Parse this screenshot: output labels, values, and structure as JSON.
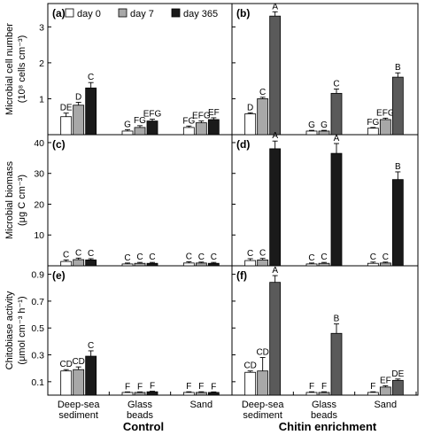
{
  "colors": {
    "day 0": "#ffffff",
    "day 7": "#a8a8a8",
    "day 365": "#1a1a1a",
    "panel_b_day365": "#5a5a5a",
    "panel_f_day365": "#5a5a5a",
    "axis": "#000000"
  },
  "legend": [
    "day 0",
    "day 7",
    "day 365"
  ],
  "x_groups": [
    [
      "Deep-sea",
      "sediment"
    ],
    [
      "Glass",
      "beads"
    ],
    [
      "Sand"
    ]
  ],
  "column_titles": [
    "Control",
    "Chitin enrichment"
  ],
  "row_ylabels": [
    [
      "Microbial cell number",
      "(10⁸ cells cm⁻³)"
    ],
    [
      "Microbial biomass",
      "(μg C cm⁻³)"
    ],
    [
      "Chitobiase activity",
      "(μmol cm⁻³ h⁻¹)"
    ]
  ],
  "chart_data": [
    {
      "panel": "(a)",
      "type": "bar",
      "categories": [
        "Deep-sea sediment",
        "Glass beads",
        "Sand"
      ],
      "ylim": [
        0,
        3.6
      ],
      "yticks": [
        1,
        2,
        3
      ],
      "tick_labels": [
        "1",
        "2",
        "3"
      ],
      "series": [
        {
          "name": "day 0",
          "values": [
            0.5,
            0.1,
            0.2
          ],
          "errors": [
            0.1,
            0.04,
            0.04
          ],
          "letters": [
            "DE",
            "G",
            "FG"
          ]
        },
        {
          "name": "day 7",
          "values": [
            0.82,
            0.2,
            0.33
          ],
          "errors": [
            0.08,
            0.05,
            0.05
          ],
          "letters": [
            "D",
            "FG",
            "EFG"
          ]
        },
        {
          "name": "day 365",
          "values": [
            1.3,
            0.38,
            0.42
          ],
          "errors": [
            0.15,
            0.05,
            0.05
          ],
          "letters": [
            "C",
            "EFG",
            "EF"
          ]
        }
      ]
    },
    {
      "panel": "(b)",
      "type": "bar",
      "categories": [
        "Deep-sea sediment",
        "Glass beads",
        "Sand"
      ],
      "ylim": [
        0,
        3.6
      ],
      "yticks": [
        1,
        2,
        3
      ],
      "tick_labels": [
        "1",
        "2",
        "3"
      ],
      "series": [
        {
          "name": "day 0",
          "values": [
            0.58,
            0.1,
            0.18
          ],
          "errors": [
            0.03,
            0.02,
            0.02
          ],
          "letters": [
            "D",
            "G",
            "FG"
          ]
        },
        {
          "name": "day 7",
          "values": [
            1.0,
            0.1,
            0.42
          ],
          "errors": [
            0.04,
            0.02,
            0.04
          ],
          "letters": [
            "C",
            "G",
            "EFG"
          ]
        },
        {
          "name": "day 365",
          "values": [
            3.3,
            1.15,
            1.6
          ],
          "errors": [
            0.12,
            0.12,
            0.12
          ],
          "letters": [
            "A",
            "C",
            "B"
          ]
        }
      ]
    },
    {
      "panel": "(c)",
      "type": "bar",
      "categories": [
        "Deep-sea sediment",
        "Glass beads",
        "Sand"
      ],
      "ylim": [
        0,
        42
      ],
      "yticks": [
        10,
        20,
        30,
        40
      ],
      "tick_labels": [
        "10",
        "20",
        "30",
        "40"
      ],
      "series": [
        {
          "name": "day 0",
          "values": [
            1.4,
            0.6,
            0.9
          ],
          "errors": [
            0.5,
            0.3,
            0.4
          ],
          "letters": [
            "C",
            "C",
            "C"
          ]
        },
        {
          "name": "day 7",
          "values": [
            2.0,
            0.8,
            0.9
          ],
          "errors": [
            0.5,
            0.3,
            0.3
          ],
          "letters": [
            "C",
            "C",
            "C"
          ]
        },
        {
          "name": "day 365",
          "values": [
            1.9,
            0.8,
            0.8
          ],
          "errors": [
            0.4,
            0.3,
            0.3
          ],
          "letters": [
            "C",
            "C",
            "C"
          ]
        }
      ]
    },
    {
      "panel": "(d)",
      "type": "bar",
      "categories": [
        "Deep-sea sediment",
        "Glass beads",
        "Sand"
      ],
      "ylim": [
        0,
        42
      ],
      "yticks": [
        10,
        20,
        30,
        40
      ],
      "tick_labels": [
        "10",
        "20",
        "30",
        "40"
      ],
      "series": [
        {
          "name": "day 0",
          "values": [
            1.7,
            0.6,
            0.8
          ],
          "errors": [
            0.6,
            0.3,
            0.4
          ],
          "letters": [
            "C",
            "C",
            "C"
          ]
        },
        {
          "name": "day 7",
          "values": [
            1.9,
            0.8,
            0.9
          ],
          "errors": [
            0.5,
            0.3,
            0.3
          ],
          "letters": [
            "C",
            "C",
            "C"
          ]
        },
        {
          "name": "day 365",
          "values": [
            38,
            36.5,
            28
          ],
          "errors": [
            2.5,
            3.2,
            2.5
          ],
          "letters": [
            "A",
            "A",
            "B"
          ]
        }
      ]
    },
    {
      "panel": "(e)",
      "type": "bar",
      "categories": [
        "Deep-sea sediment",
        "Glass beads",
        "Sand"
      ],
      "ylim": [
        0,
        0.95
      ],
      "yticks": [
        0.1,
        0.3,
        0.5,
        0.7,
        0.9
      ],
      "tick_labels": [
        "0.1",
        "0.3",
        "0.5",
        "0.7",
        "0.9"
      ],
      "series": [
        {
          "name": "day 0",
          "values": [
            0.18,
            0.02,
            0.02
          ],
          "errors": [
            0.01,
            0.004,
            0.005
          ],
          "letters": [
            "CD",
            "F",
            "F"
          ]
        },
        {
          "name": "day 7",
          "values": [
            0.19,
            0.02,
            0.02
          ],
          "errors": [
            0.02,
            0.004,
            0.005
          ],
          "letters": [
            "CD",
            "F",
            "F"
          ]
        },
        {
          "name": "day 365",
          "values": [
            0.29,
            0.025,
            0.02
          ],
          "errors": [
            0.04,
            0.004,
            0.004
          ],
          "letters": [
            "C",
            "F",
            "F"
          ]
        }
      ]
    },
    {
      "panel": "(f)",
      "type": "bar",
      "categories": [
        "Deep-sea sediment",
        "Glass beads",
        "Sand"
      ],
      "ylim": [
        0,
        0.95
      ],
      "yticks": [
        0.1,
        0.3,
        0.5,
        0.7,
        0.9
      ],
      "tick_labels": [
        "0.1",
        "0.3",
        "0.5",
        "0.7",
        "0.9"
      ],
      "series": [
        {
          "name": "day 0",
          "values": [
            0.17,
            0.02,
            0.02
          ],
          "errors": [
            0.01,
            0.005,
            0.005
          ],
          "letters": [
            "CD",
            "F",
            "F"
          ]
        },
        {
          "name": "day 7",
          "values": [
            0.18,
            0.02,
            0.06
          ],
          "errors": [
            0.1,
            0.005,
            0.01
          ],
          "letters": [
            "CD",
            "F",
            "EF"
          ]
        },
        {
          "name": "day 365",
          "values": [
            0.84,
            0.46,
            0.11
          ],
          "errors": [
            0.05,
            0.07,
            0.01
          ],
          "letters": [
            "A",
            "B",
            "DE"
          ]
        }
      ]
    }
  ]
}
